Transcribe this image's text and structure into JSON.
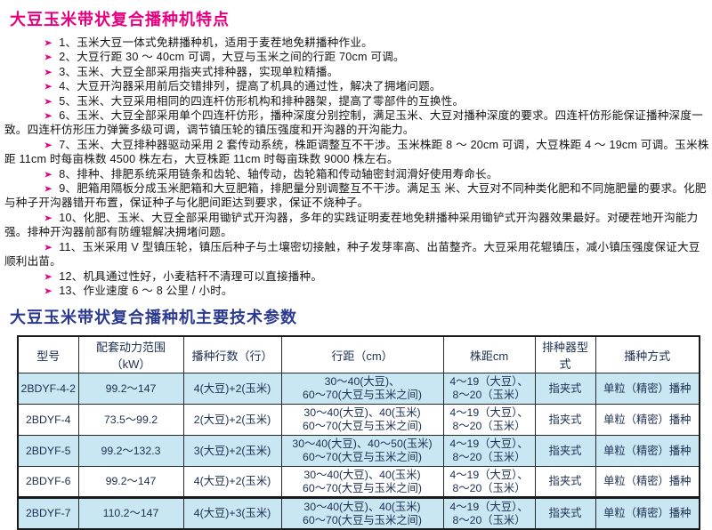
{
  "features": {
    "title": "大豆玉米带状复合播种机特点",
    "bullet": "➤",
    "items": [
      "1、玉米大豆一体式免耕播种机，适用于麦茬地免耕播种作业。",
      "2、大豆行距 30 ～ 40cm 可调，大豆与玉米之间的行距 70cm 可调。",
      "3、玉米、大豆全部采用指夹式排种器，实现单粒精播。",
      "4、大豆开沟器采用前后交错排列，提高了机具的通过性，解决了拥堵问题。",
      "5、玉米、大豆采用相同的四连杆仿形机构和排种器架，提高了零部件的互换性。",
      "6、玉米、大豆全部采用单个四连杆仿形，播种深度分别控制，满足玉米、大豆对播种深度的要求。四连杆仿形能保证播种深度一致。四连杆仿形压力弹簧多级可调，调节镇压轮的镇压强度和开沟器的开沟能力。",
      "7、玉米、大豆排种器驱动采用 2 套传动系统，株距调整互不干涉。玉米株距 8 ～ 20cm 可调，大豆株距 4 ～ 19cm 可调。玉米株距 11cm 时每亩株数 4500 株左右，大豆株距 11cm 时每亩珠数 9000 株左右。",
      "8、排种、排肥系统采用链条和齿轮、轴传动，齿轮箱和传动轴密封润滑好使用寿命长。",
      "9、肥箱用隔板分成玉米肥箱和大豆肥箱，排肥量分别调整互不干涉。满足玉 米、大豆对不同种类化肥和不同施肥量的要求。化肥与种子开沟器错开布置，保证种子与化肥间距达到要求，保证不烧种子。",
      "10、化肥、玉米、大豆全部采用锄铲式开沟器，多年的实践证明麦茬地免耕播种采用锄铲式开沟器效果最好。对硬茬地开沟能力强。排种开沟器前部有防缠辊解决拥堵问题。",
      "11、玉米采用 V 型镇压轮，镇压后种子与土壤密切接触，种子发芽率高、出苗整齐。大豆采用花辊镇压，减小镇压强度保证大豆顺利出苗。",
      "12、机具通过性好，小麦秸秆不清理可以直接播种。",
      "13、作业速度 6 ～ 8 公里 / 小时。"
    ]
  },
  "specs": {
    "title": "大豆玉米带状复合播种机主要技术参数",
    "table": {
      "headers": [
        "型号",
        "配套动力范围（kW）",
        "播种行数（行）",
        "行距（cm）",
        "株距cm",
        "排种器型式",
        "播种方式"
      ],
      "rows": [
        {
          "model": "2BDYF-4-2",
          "power": "99.2～147",
          "seed_rows": "4(大豆)+2(玉米)",
          "row_spacing": "30～40(大豆)、\n60～70(大豆与玉米之间)",
          "plant_spacing": "4～19（大豆）、\n8～20（玉米）",
          "meter_type": "指夹式",
          "method": "单粒（精密）播种"
        },
        {
          "model": "2BDYF-4",
          "power": "73.5～99.2",
          "seed_rows": "2(大豆)+2(玉米)",
          "row_spacing": "30～40(大豆)、40(玉米)\n60～70(大豆与玉米之间)",
          "plant_spacing": "4～19（大豆）、\n8～20（玉米）",
          "meter_type": "指夹式",
          "method": "单粒（精密）播种"
        },
        {
          "model": "2BDYF-5",
          "power": "99.2～132.3",
          "seed_rows": "3(大豆)+2(玉米)",
          "row_spacing": "30～40(大豆)、40～50(玉米)\n60～70(大豆与玉米之间)",
          "plant_spacing": "4～19（大豆）、\n8～20（玉米）",
          "meter_type": "指夹式",
          "method": "单粒（精密）播种"
        },
        {
          "model": "2BDYF-6",
          "power": "99.2～147",
          "seed_rows": "4(大豆)+2(玉米)",
          "row_spacing": "30～40(大豆)、40(玉米)\n60～70(大豆与玉米之间)",
          "plant_spacing": "4～19（大豆）、\n8～20（玉米）",
          "meter_type": "指夹式",
          "method": "单粒（精密）播种"
        },
        {
          "model": "2BDYF-7",
          "power": "110.2～147",
          "seed_rows": "4(大豆)+3(玉米)",
          "row_spacing": "30～40(大豆)、40(玉米)\n60～70(大豆与玉米之间)",
          "plant_spacing": "4～19（大豆）、\n8～20（玉米）",
          "meter_type": "指夹式",
          "method": "单粒（精密）播种"
        }
      ]
    }
  },
  "colors": {
    "accent_magenta": "#e4007f",
    "accent_blue": "#2b3a8f",
    "row_highlight": "#c9e6f3"
  }
}
